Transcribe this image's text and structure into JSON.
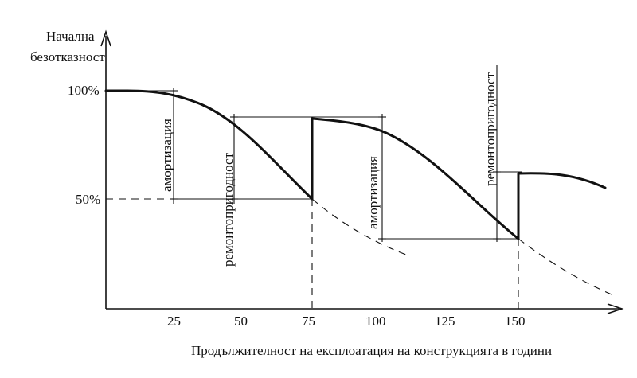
{
  "diagram": {
    "y_axis_title_line1": "Начална",
    "y_axis_title_line2": "безотказност",
    "x_axis_title": "Продължителност на експлоатация на конструкцията в години",
    "y_tick_100": "100%",
    "y_tick_50": "50%",
    "x_ticks": [
      "25",
      "50",
      "75",
      "100",
      "125",
      "150"
    ],
    "label_amortization_1": "амортизация",
    "label_repairability_1": "ремонтопригодност",
    "label_amortization_2": "амортизация",
    "label_repairability_2": "ремонтопригодност"
  }
}
